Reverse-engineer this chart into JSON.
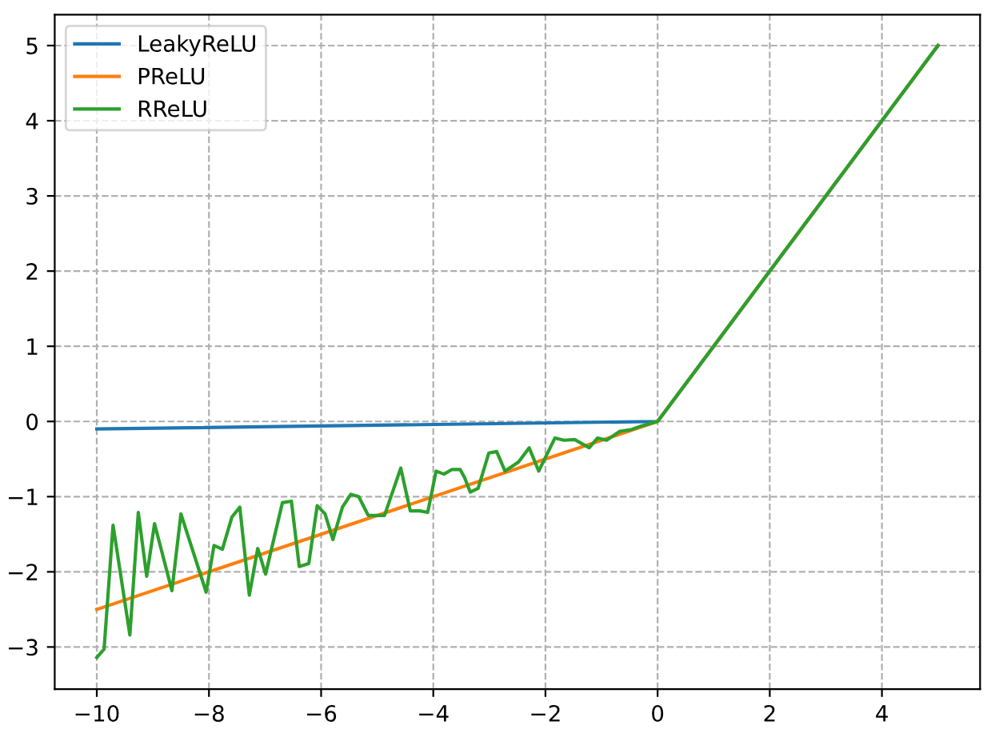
{
  "chart_data": {
    "type": "line",
    "xlim": [
      -10.75,
      5.75
    ],
    "ylim": [
      -3.56,
      5.41
    ],
    "xticks": [
      -10,
      -8,
      -6,
      -4,
      -2,
      0,
      2,
      4
    ],
    "yticks": [
      -3,
      -2,
      -1,
      0,
      1,
      2,
      3,
      4,
      5
    ],
    "grid": true,
    "legend": "top left",
    "series": [
      {
        "name": "LeakyReLU",
        "color": "#1f77b4",
        "x": [
          -10,
          0,
          5
        ],
        "values": [
          -0.1,
          0,
          5
        ]
      },
      {
        "name": "PReLU",
        "color": "#ff7f0e",
        "x": [
          -10,
          0,
          5
        ],
        "values": [
          -2.5,
          0,
          5
        ]
      },
      {
        "name": "RReLU",
        "color": "#2ca02c",
        "x": [
          -10,
          -9.87,
          -9.71,
          -9.41,
          -9.26,
          -9.11,
          -8.97,
          -8.66,
          -8.5,
          -8.05,
          -7.91,
          -7.76,
          -7.59,
          -7.45,
          -7.28,
          -7.13,
          -6.99,
          -6.69,
          -6.53,
          -6.39,
          -6.22,
          -6.07,
          -5.93,
          -5.79,
          -5.62,
          -5.47,
          -5.33,
          -5.16,
          -4.87,
          -4.58,
          -4.41,
          -4.24,
          -4.1,
          -3.95,
          -3.81,
          -3.67,
          -3.52,
          -3.44,
          -3.34,
          -3.2,
          -3.01,
          -2.87,
          -2.72,
          -2.48,
          -2.29,
          -2.12,
          -1.83,
          -1.67,
          -1.48,
          -1.22,
          -1.07,
          -0.91,
          -0.67,
          -0.48,
          -0.29,
          0,
          5
        ],
        "values": [
          -3.14,
          -3.03,
          -1.38,
          -2.84,
          -1.21,
          -2.06,
          -1.36,
          -2.25,
          -1.23,
          -2.27,
          -1.65,
          -1.7,
          -1.27,
          -1.14,
          -2.31,
          -1.69,
          -2.03,
          -1.08,
          -1.06,
          -1.93,
          -1.89,
          -1.12,
          -1.23,
          -1.57,
          -1.14,
          -0.97,
          -1.0,
          -1.25,
          -1.25,
          -0.62,
          -1.19,
          -1.19,
          -1.21,
          -0.66,
          -0.7,
          -0.64,
          -0.64,
          -0.75,
          -0.94,
          -0.89,
          -0.42,
          -0.4,
          -0.66,
          -0.54,
          -0.35,
          -0.66,
          -0.22,
          -0.25,
          -0.24,
          -0.35,
          -0.22,
          -0.25,
          -0.13,
          -0.11,
          -0.06,
          0,
          5
        ]
      }
    ]
  }
}
